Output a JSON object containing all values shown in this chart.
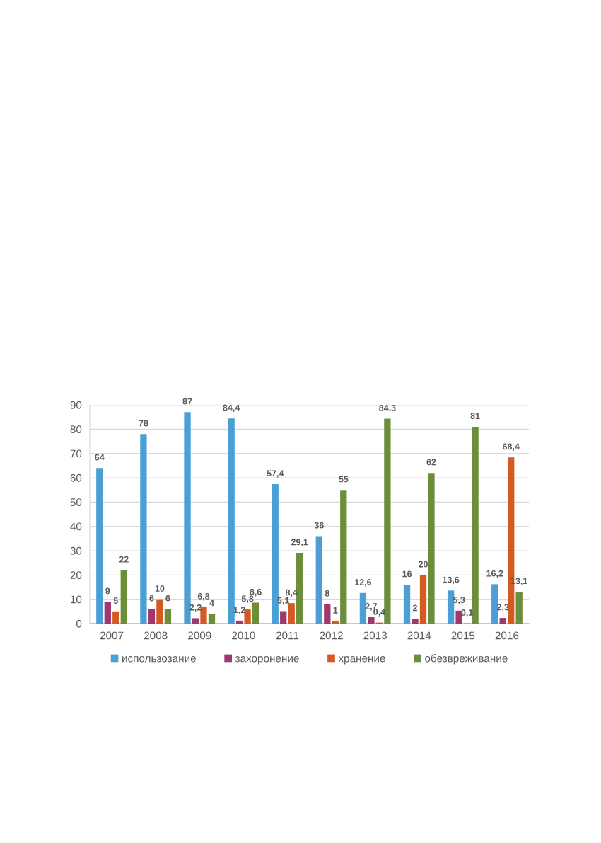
{
  "chart_data": {
    "type": "bar",
    "categories": [
      "2007",
      "2008",
      "2009",
      "2010",
      "2011",
      "2012",
      "2013",
      "2014",
      "2015",
      "2016"
    ],
    "series": [
      {
        "name": "использозание",
        "color": "#4a9fd5",
        "values": [
          64,
          78,
          87,
          84.4,
          57.4,
          36,
          12.6,
          16,
          13.6,
          16.2
        ],
        "value_labels": [
          "64",
          "78",
          "87",
          "84,4",
          "57,4",
          "36",
          "12,6",
          "16",
          "13,6",
          "16,2"
        ]
      },
      {
        "name": "захоронение",
        "color": "#a0386f",
        "values": [
          9,
          6,
          2.2,
          1.2,
          5.1,
          8,
          2.7,
          2,
          5.3,
          2.3
        ],
        "value_labels": [
          "9",
          "6",
          "2,2",
          "1,2",
          "5,1",
          "8",
          "2,7",
          "2",
          "5,3",
          "2,3"
        ]
      },
      {
        "name": "хранение",
        "color": "#d45a21",
        "values": [
          5,
          10,
          6.8,
          5.8,
          8.4,
          1,
          0.4,
          20,
          0.1,
          68.4
        ],
        "value_labels": [
          "5",
          "10",
          "6,8",
          "5,8",
          "8,4",
          "1",
          "0,4",
          "20",
          "0,1",
          "68,4"
        ]
      },
      {
        "name": "обезвреживание",
        "color": "#6b8e3a",
        "values": [
          22,
          6,
          4,
          8.6,
          29.1,
          55,
          84.3,
          62,
          81,
          13.1
        ],
        "value_labels": [
          "22",
          "6",
          "4",
          "8,6",
          "29,1",
          "55",
          "84,3",
          "62",
          "81",
          "13,1"
        ]
      }
    ],
    "ylim": [
      0,
      90
    ],
    "yticks": [
      0,
      10,
      20,
      30,
      40,
      50,
      60,
      70,
      80,
      90
    ],
    "grid": "y",
    "legend": "bottom"
  }
}
